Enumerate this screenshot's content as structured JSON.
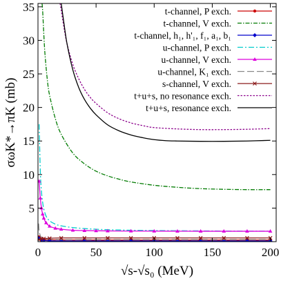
{
  "chart_data": {
    "type": "line",
    "xlabel": "√s-√s₀ (MeV)",
    "ylabel": "σωK*→πK (mb)",
    "xlim": [
      0,
      205
    ],
    "ylim": [
      0,
      35.5
    ],
    "xticks": [
      0,
      50,
      100,
      150,
      200
    ],
    "yticks": [
      5,
      10,
      15,
      20,
      25,
      30,
      35
    ],
    "legend_position": "top-right",
    "series": [
      {
        "name": "t-channel, P exch.",
        "color": "#cc0000",
        "dash": "",
        "marker": "circle",
        "x": [
          1,
          3,
          5,
          10,
          20,
          40,
          60,
          80,
          100,
          120,
          140,
          160,
          180,
          200
        ],
        "y": [
          0.7,
          0.45,
          0.35,
          0.28,
          0.25,
          0.24,
          0.24,
          0.24,
          0.24,
          0.24,
          0.24,
          0.24,
          0.24,
          0.24
        ]
      },
      {
        "name": "t-channel, V exch.",
        "color": "#007a00",
        "dash": "6 2 1.5 2",
        "marker": "none",
        "x": [
          3.5,
          4,
          5,
          6,
          8,
          10,
          15,
          20,
          30,
          40,
          50,
          60,
          70,
          80,
          100,
          120,
          140,
          160,
          180,
          200
        ],
        "y": [
          35.5,
          34.5,
          31,
          28,
          24.2,
          21.8,
          18.3,
          16,
          13.2,
          11.6,
          10.5,
          9.8,
          9.3,
          8.9,
          8.4,
          8.1,
          7.9,
          7.8,
          7.75,
          7.75
        ]
      },
      {
        "name": "t-channel, h₁, h'₁, f₁, a₁, b₁",
        "color": "#0000cc",
        "dash": "",
        "marker": "diamond",
        "x": [
          1,
          3,
          5,
          10,
          20,
          40,
          60,
          80,
          100,
          120,
          140,
          160,
          180,
          200
        ],
        "y": [
          0.5,
          0.25,
          0.18,
          0.12,
          0.1,
          0.1,
          0.1,
          0.1,
          0.1,
          0.1,
          0.1,
          0.1,
          0.1,
          0.1
        ]
      },
      {
        "name": "u-channel, P exch.",
        "color": "#00cccc",
        "dash": "8 3 2 3",
        "marker": "none",
        "x": [
          1,
          2,
          3,
          4,
          5,
          7,
          10,
          15,
          20,
          30,
          40,
          50,
          60,
          80,
          100,
          120,
          140,
          160,
          180,
          200
        ],
        "y": [
          17.5,
          10.5,
          7.5,
          5.9,
          4.9,
          3.8,
          3.1,
          2.6,
          2.35,
          2.1,
          1.95,
          1.85,
          1.78,
          1.7,
          1.65,
          1.62,
          1.6,
          1.58,
          1.57,
          1.56
        ]
      },
      {
        "name": "u-channel, V exch.",
        "color": "#dd00dd",
        "dash": "",
        "marker": "triangle",
        "x": [
          1,
          2,
          3,
          4,
          5,
          7,
          10,
          15,
          20,
          30,
          40,
          50,
          60,
          80,
          100,
          120,
          140,
          160,
          180,
          200
        ],
        "y": [
          9,
          6.5,
          5,
          4.1,
          3.5,
          2.8,
          2.3,
          2.0,
          1.85,
          1.7,
          1.65,
          1.62,
          1.6,
          1.58,
          1.57,
          1.56,
          1.55,
          1.55,
          1.55,
          1.55
        ]
      },
      {
        "name": "u-channel, K₁ exch.",
        "color": "#888888",
        "dash": "10 4",
        "marker": "none",
        "x": [
          0.5,
          1,
          2,
          3,
          5,
          10,
          20,
          40,
          60,
          100,
          140,
          200
        ],
        "y": [
          2.7,
          1.6,
          0.9,
          0.65,
          0.45,
          0.35,
          0.3,
          0.3,
          0.3,
          0.3,
          0.3,
          0.3
        ]
      },
      {
        "name": "s-channel, V exch.",
        "color": "#8b1a1a",
        "dash": "",
        "marker": "cross",
        "x": [
          1,
          3,
          5,
          10,
          20,
          40,
          60,
          80,
          100,
          120,
          140,
          160,
          180,
          200
        ],
        "y": [
          0.3,
          0.4,
          0.45,
          0.5,
          0.55,
          0.55,
          0.55,
          0.55,
          0.55,
          0.55,
          0.55,
          0.55,
          0.55,
          0.55
        ]
      },
      {
        "name": "t+u+s, no resonance exch.",
        "color": "#8b008b",
        "dash": "2.5 2",
        "marker": "none",
        "x": [
          19,
          20,
          22,
          25,
          30,
          35,
          40,
          45,
          50,
          60,
          70,
          80,
          90,
          100,
          120,
          140,
          160,
          180,
          200
        ],
        "y": [
          35.5,
          34.5,
          32.3,
          29.5,
          26.4,
          24.3,
          22.7,
          21.5,
          20.6,
          19.2,
          18.3,
          17.7,
          17.3,
          17.0,
          16.8,
          16.7,
          16.7,
          16.75,
          16.85
        ]
      },
      {
        "name": "t+u+s, resonance exch.",
        "color": "#000000",
        "dash": "",
        "marker": "none",
        "x": [
          20,
          22,
          25,
          30,
          35,
          40,
          45,
          50,
          60,
          70,
          80,
          90,
          100,
          110,
          120,
          140,
          160,
          180,
          200
        ],
        "y": [
          35.5,
          33.0,
          29.5,
          25.6,
          23.0,
          21.2,
          19.9,
          18.9,
          17.4,
          16.5,
          15.9,
          15.5,
          15.2,
          15.05,
          15.0,
          14.95,
          14.95,
          15.0,
          15.1
        ]
      }
    ]
  }
}
